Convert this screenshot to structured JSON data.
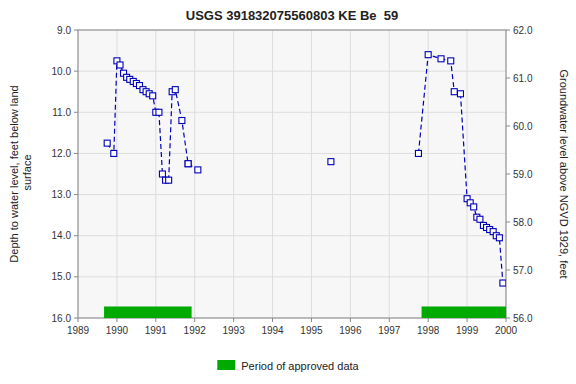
{
  "chart_data": {
    "type": "line",
    "title": "USGS 391832075560803 KE Be  59",
    "y_label": "Depth to water level, feet below land\n surface",
    "y2_label": "Groundwater level above NGVD 1929, feet",
    "xlim": [
      1989,
      2000
    ],
    "xticks": [
      1989,
      1990,
      1991,
      1992,
      1993,
      1994,
      1995,
      1996,
      1997,
      1998,
      1999,
      2000
    ],
    "ylim": [
      16.0,
      9.0
    ],
    "yticks": [
      {
        "value": 9.0,
        "label": "9.0"
      },
      {
        "value": 10.0,
        "label": "10.0"
      },
      {
        "value": 11.0,
        "label": "11.0"
      },
      {
        "value": 12.0,
        "label": "12.0"
      },
      {
        "value": 13.0,
        "label": "13.0"
      },
      {
        "value": 14.0,
        "label": "14.0"
      },
      {
        "value": 15.0,
        "label": "15.0"
      },
      {
        "value": 16.0,
        "label": "16.0"
      }
    ],
    "y2lim": [
      56.0,
      62.0
    ],
    "y2ticks": [
      {
        "value": 56.0,
        "label": "56.0"
      },
      {
        "value": 57.0,
        "label": "57.0"
      },
      {
        "value": 58.0,
        "label": "58.0"
      },
      {
        "value": 59.0,
        "label": "59.0"
      },
      {
        "value": 60.0,
        "label": "60.0"
      },
      {
        "value": 61.0,
        "label": "61.0"
      },
      {
        "value": 62.0,
        "label": "62.0"
      }
    ],
    "grid": true,
    "legend": "bottom",
    "series": [
      {
        "type": "line",
        "color": "#0000BB",
        "marker": "square",
        "line_style": "dashed",
        "x": [
          1989.75,
          1989.92,
          1990.0,
          1990.08,
          1990.17,
          1990.25,
          1990.33,
          1990.42,
          1990.5,
          1990.58,
          1990.67,
          1990.75,
          1990.83,
          1990.92,
          1991.0,
          1991.08,
          1991.17,
          1991.25,
          1991.33,
          1991.42,
          1991.5,
          1991.67,
          1991.83
        ],
        "values": [
          11.75,
          12.0,
          9.75,
          9.85,
          10.05,
          10.15,
          10.2,
          10.25,
          10.3,
          10.35,
          10.45,
          10.5,
          10.55,
          10.6,
          11.0,
          11.0,
          12.5,
          12.65,
          12.65,
          10.5,
          10.45,
          11.2,
          12.25
        ]
      },
      {
        "type": "line",
        "color": "#0000BB",
        "marker": "square",
        "line_style": "dashed",
        "x": [
          1991.83,
          1992.08
        ],
        "values": [
          12.25,
          12.4
        ]
      },
      {
        "type": "line",
        "color": "#0000BB",
        "marker": "square",
        "line_style": "dashed",
        "x": [
          1995.5
        ],
        "values": [
          12.2
        ]
      },
      {
        "type": "line",
        "color": "#0000BB",
        "marker": "square",
        "line_style": "dashed",
        "x": [
          1997.75,
          1998.0,
          1998.33,
          1998.58,
          1998.67,
          1998.83,
          1999.0,
          1999.08,
          1999.17,
          1999.25,
          1999.33,
          1999.42,
          1999.5,
          1999.58,
          1999.67,
          1999.75,
          1999.83,
          1999.92
        ],
        "values": [
          12.0,
          9.6,
          9.7,
          9.75,
          10.5,
          10.55,
          13.1,
          13.2,
          13.3,
          13.55,
          13.6,
          13.75,
          13.8,
          13.85,
          13.9,
          14.0,
          14.05,
          15.15
        ]
      },
      {
        "type": "span",
        "name": "Period of approved data",
        "color": "#00AA00",
        "ranges": [
          [
            1989.67,
            1991.92
          ],
          [
            1997.83,
            2000.0
          ]
        ],
        "base": 16.0,
        "height": 0.28
      }
    ]
  }
}
